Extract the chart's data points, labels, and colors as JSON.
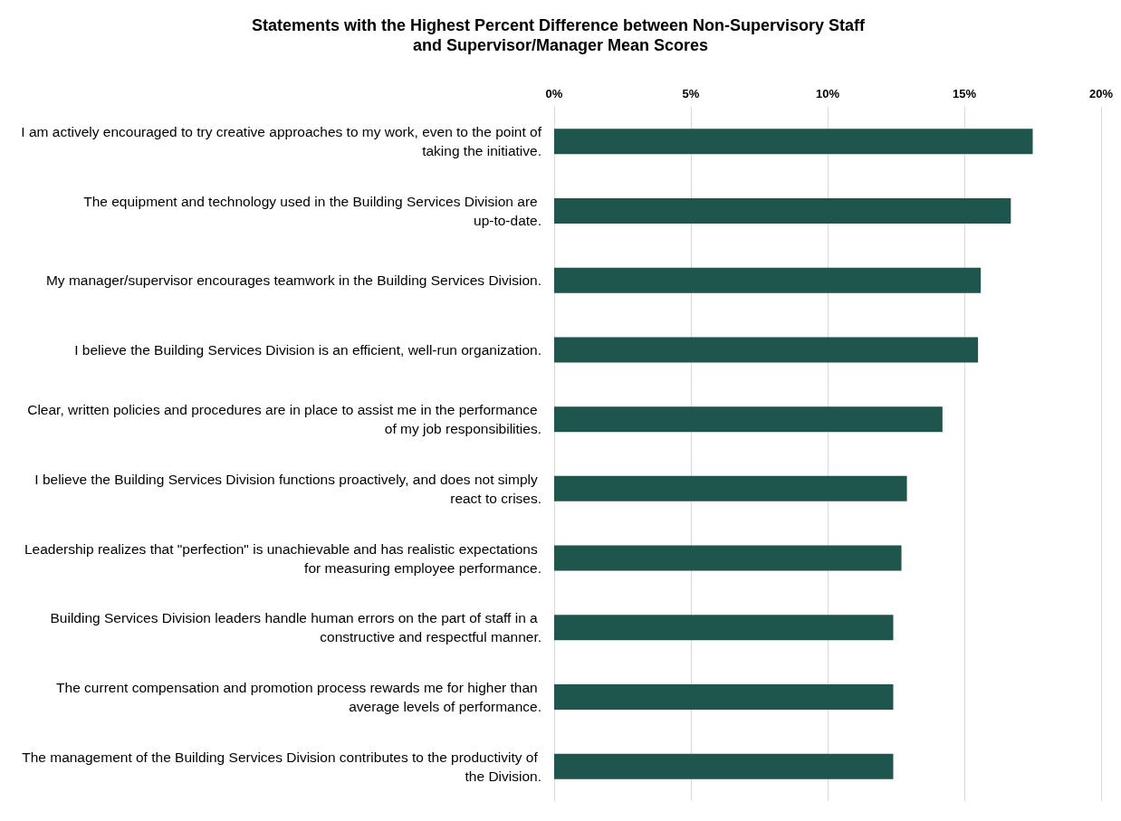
{
  "chart_data": {
    "type": "bar",
    "orientation": "horizontal",
    "title": "Statements with the Highest Percent Difference between Non-Supervisory Staff and Supervisor/Manager Mean Scores",
    "categories": [
      "I am actively encouraged to try creative approaches to my work, even to the point of taking the initiative.",
      "The equipment and technology used in the Building Services Division are up-to-date.",
      "My manager/supervisor encourages teamwork in the Building Services Division.",
      "I believe the Building Services Division is an efficient, well-run organization.",
      "Clear, written policies and procedures are in place to assist me in the performance of my job responsibilities.",
      "I believe the Building Services Division functions proactively, and does not simply react to crises.",
      "Leadership realizes that \"perfection\" is unachievable and has realistic expectations for measuring employee performance.",
      "Building Services Division leaders handle human errors on the part of staff in a constructive and respectful manner.",
      "The current compensation and promotion process rewards me for higher than average levels of performance.",
      "The management of the Building Services Division contributes to the productivity of the Division."
    ],
    "values": [
      17.5,
      16.7,
      15.6,
      15.5,
      14.2,
      12.9,
      12.7,
      12.4,
      12.4,
      12.4
    ],
    "color": "#1e554c",
    "xlim": [
      0,
      20
    ],
    "xticks": [
      {
        "value": 0,
        "label": "0%"
      },
      {
        "value": 5,
        "label": "5%"
      },
      {
        "value": 10,
        "label": "10%"
      },
      {
        "value": 15,
        "label": "15%"
      },
      {
        "value": 20,
        "label": "20%"
      }
    ],
    "grid": "x"
  }
}
